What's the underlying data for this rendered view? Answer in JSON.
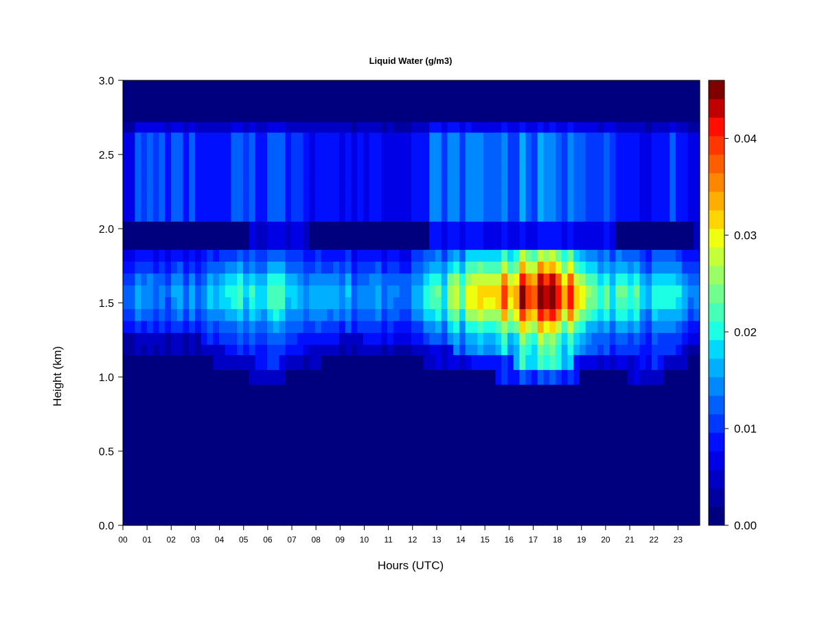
{
  "chart_data": {
    "type": "heatmap",
    "title": "Liquid Water (g/m3)",
    "xlabel": "Hours (UTC)",
    "ylabel": "Height (km)",
    "x_ticks": [
      "00",
      "01",
      "02",
      "03",
      "04",
      "05",
      "06",
      "07",
      "08",
      "09",
      "10",
      "11",
      "12",
      "13",
      "14",
      "15",
      "16",
      "17",
      "18",
      "19",
      "20",
      "21",
      "22",
      "23"
    ],
    "y_ticks": [
      "0.0",
      "0.5",
      "1.0",
      "1.5",
      "2.0",
      "2.5",
      "3.0"
    ],
    "xlim": [
      0,
      23.9
    ],
    "ylim": [
      0,
      3.0
    ],
    "colorbar": {
      "range": [
        0,
        0.046
      ],
      "tick_values": [
        0.0,
        0.01,
        0.02,
        0.03,
        0.04
      ],
      "tick_labels": [
        "0.00",
        "0.01",
        "0.02",
        "0.03",
        "0.04"
      ],
      "colors": [
        "#00007F",
        "#0000A0",
        "#0000C4",
        "#0000E6",
        "#0010FF",
        "#0038FF",
        "#0060FF",
        "#0088FF",
        "#00AFFF",
        "#00D8FF",
        "#1CFFE2",
        "#46FFB8",
        "#70FF8E",
        "#9AFF64",
        "#C4FF3A",
        "#EEFF10",
        "#FFD500",
        "#FFAE00",
        "#FF8600",
        "#FF5E00",
        "#FF3700",
        "#FF0F00",
        "#C00000",
        "#800000"
      ]
    },
    "cloud_layer_profile": [
      {
        "hour": 0,
        "base_km": 1.15,
        "peak_gwc": 0.014
      },
      {
        "hour": 3,
        "base_km": 1.15,
        "peak_gwc": 0.014
      },
      {
        "hour": 6,
        "base_km": 0.95,
        "peak_gwc": 0.022
      },
      {
        "hour": 9,
        "base_km": 1.15,
        "peak_gwc": 0.015
      },
      {
        "hour": 12,
        "base_km": 1.12,
        "peak_gwc": 0.016
      },
      {
        "hour": 14,
        "base_km": 1.05,
        "peak_gwc": 0.026
      },
      {
        "hour": 17,
        "base_km": 0.95,
        "peak_gwc": 0.043
      },
      {
        "hour": 18,
        "base_km": 0.95,
        "peak_gwc": 0.042
      },
      {
        "hour": 20,
        "base_km": 1.05,
        "peak_gwc": 0.024
      },
      {
        "hour": 22,
        "base_km": 0.95,
        "peak_gwc": 0.018
      },
      {
        "hour": 23.9,
        "base_km": 1.15,
        "peak_gwc": 0.016
      }
    ]
  }
}
